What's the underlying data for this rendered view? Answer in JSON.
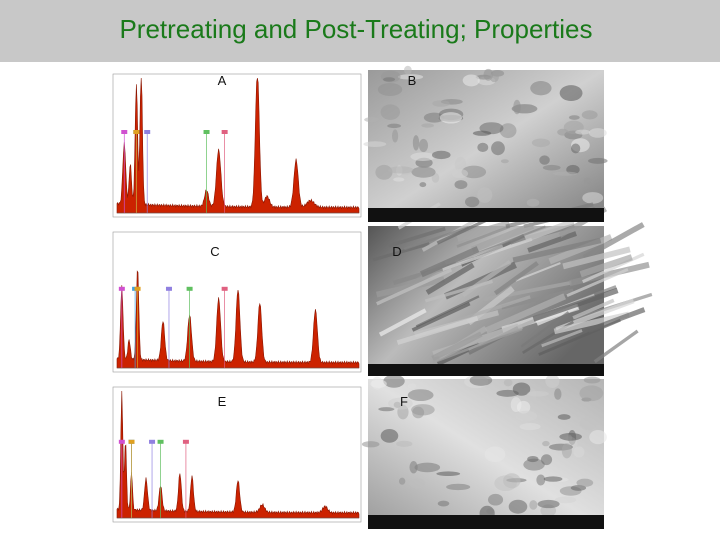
{
  "header": {
    "title": "Pretreating and Post-Treating; Properties"
  },
  "panels": [
    {
      "label": "A"
    },
    {
      "label": "B"
    },
    {
      "label": "C"
    },
    {
      "label": "D"
    },
    {
      "label": "E"
    },
    {
      "label": "F"
    }
  ]
}
